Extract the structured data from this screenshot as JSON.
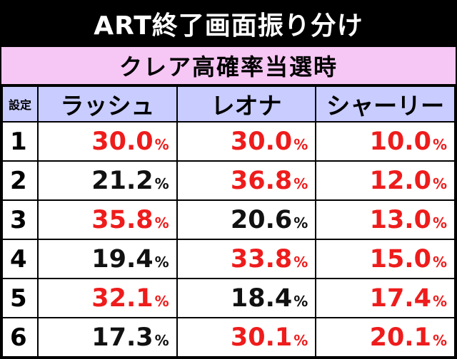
{
  "title": "ART終了画面振り分け",
  "subtitle": "クレア高確率当選時",
  "header": {
    "setting": "設定",
    "columns": [
      "ラッシュ",
      "レオナ",
      "シャーリー"
    ]
  },
  "rows": [
    {
      "setting": "1",
      "cells": [
        {
          "value": "30.0",
          "unit": "%",
          "color": "#ee1c1c"
        },
        {
          "value": "30.0",
          "unit": "%",
          "color": "#ee1c1c"
        },
        {
          "value": "10.0",
          "unit": "%",
          "color": "#ee1c1c"
        }
      ]
    },
    {
      "setting": "2",
      "cells": [
        {
          "value": "21.2",
          "unit": "%",
          "color": "#111111"
        },
        {
          "value": "36.8",
          "unit": "%",
          "color": "#ee1c1c"
        },
        {
          "value": "12.0",
          "unit": "%",
          "color": "#ee1c1c"
        }
      ]
    },
    {
      "setting": "3",
      "cells": [
        {
          "value": "35.8",
          "unit": "%",
          "color": "#ee1c1c"
        },
        {
          "value": "20.6",
          "unit": "%",
          "color": "#111111"
        },
        {
          "value": "13.0",
          "unit": "%",
          "color": "#ee1c1c"
        }
      ]
    },
    {
      "setting": "4",
      "cells": [
        {
          "value": "19.4",
          "unit": "%",
          "color": "#111111"
        },
        {
          "value": "33.8",
          "unit": "%",
          "color": "#ee1c1c"
        },
        {
          "value": "15.0",
          "unit": "%",
          "color": "#ee1c1c"
        }
      ]
    },
    {
      "setting": "5",
      "cells": [
        {
          "value": "32.1",
          "unit": "%",
          "color": "#ee1c1c"
        },
        {
          "value": "18.4",
          "unit": "%",
          "color": "#111111"
        },
        {
          "value": "17.4",
          "unit": "%",
          "color": "#ee1c1c"
        }
      ]
    },
    {
      "setting": "6",
      "cells": [
        {
          "value": "17.3",
          "unit": "%",
          "color": "#111111"
        },
        {
          "value": "30.1",
          "unit": "%",
          "color": "#ee1c1c"
        },
        {
          "value": "20.1",
          "unit": "%",
          "color": "#ee1c1c"
        }
      ]
    }
  ]
}
